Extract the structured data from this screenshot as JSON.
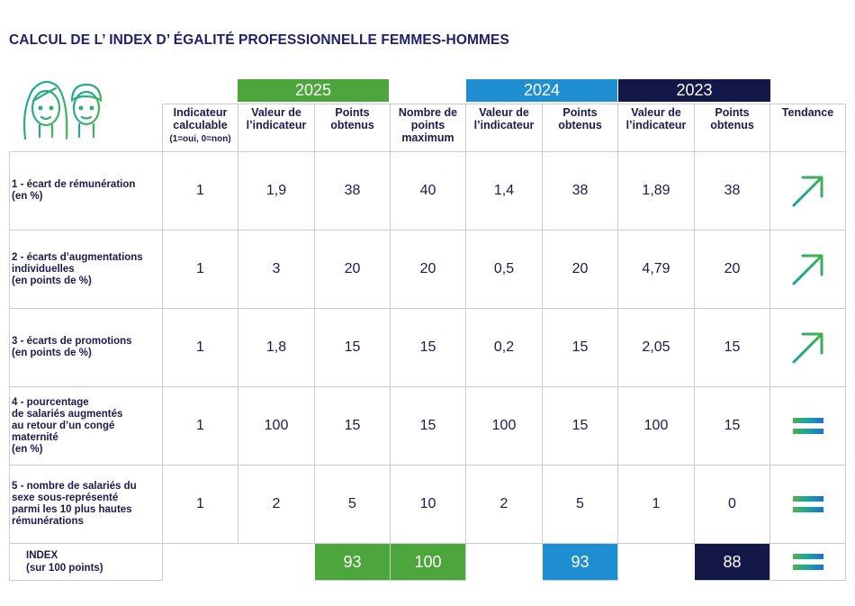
{
  "title": "CALCUL DE L’ INDEX D’ ÉGALITÉ PROFESSIONNELLE FEMMES-HOMMES",
  "colors": {
    "year_2025": "#4ca63b",
    "year_2024": "#1f8fd1",
    "year_2023": "#131849",
    "text": "#1b1b4d"
  },
  "years": {
    "y2025": "2025",
    "y2024": "2024",
    "y2023": "2023"
  },
  "headers": {
    "calculable": "Indicateur calculable",
    "calculable_sub": "(1=oui, 0=non)",
    "valeur": "Valeur de l’indicateur",
    "points": "Points obtenus",
    "max": "Nombre de points maximum",
    "tendance": "Tendance"
  },
  "rows": [
    {
      "label": "1 - écart de rémunération\n(en %)",
      "calculable": "1",
      "v2025": "1,9",
      "p2025": "38",
      "max": "40",
      "v2024": "1,4",
      "p2024": "38",
      "v2023": "1,89",
      "p2023": "38",
      "trend": "up-arrow-icon"
    },
    {
      "label": "2 -  écarts d’augmentations\nindividuelles\n(en points de %)",
      "calculable": "1",
      "v2025": "3",
      "p2025": "20",
      "max": "20",
      "v2024": "0,5",
      "p2024": "20",
      "v2023": "4,79",
      "p2023": "20",
      "trend": "up-arrow-icon"
    },
    {
      "label": "3 - écarts de promotions\n(en points de %)",
      "calculable": "1",
      "v2025": "1,8",
      "p2025": "15",
      "max": "15",
      "v2024": "0,2",
      "p2024": "15",
      "v2023": "2,05",
      "p2023": "15",
      "trend": "up-arrow-icon"
    },
    {
      "label": "4 -  pourcentage\nde salariés augmentés\nau retour d’un congé\nmaternité\n(en %)",
      "calculable": "1",
      "v2025": "100",
      "p2025": "15",
      "max": "15",
      "v2024": "100",
      "p2024": "15",
      "v2023": "100",
      "p2023": "15",
      "trend": "equals-icon"
    },
    {
      "label": "5 -  nombre de salariés du\nsexe sous-représenté\nparmi les 10 plus hautes\nrémunérations",
      "calculable": "1",
      "v2025": "2",
      "p2025": "5",
      "max": "10",
      "v2024": "2",
      "p2024": "5",
      "v2023": "1",
      "p2023": "0",
      "trend": "equals-icon"
    }
  ],
  "index": {
    "label": "INDEX\n(sur 100 points)",
    "p2025": "93",
    "max": "100",
    "p2024": "93",
    "p2023": "88",
    "trend": "equals-icon"
  }
}
